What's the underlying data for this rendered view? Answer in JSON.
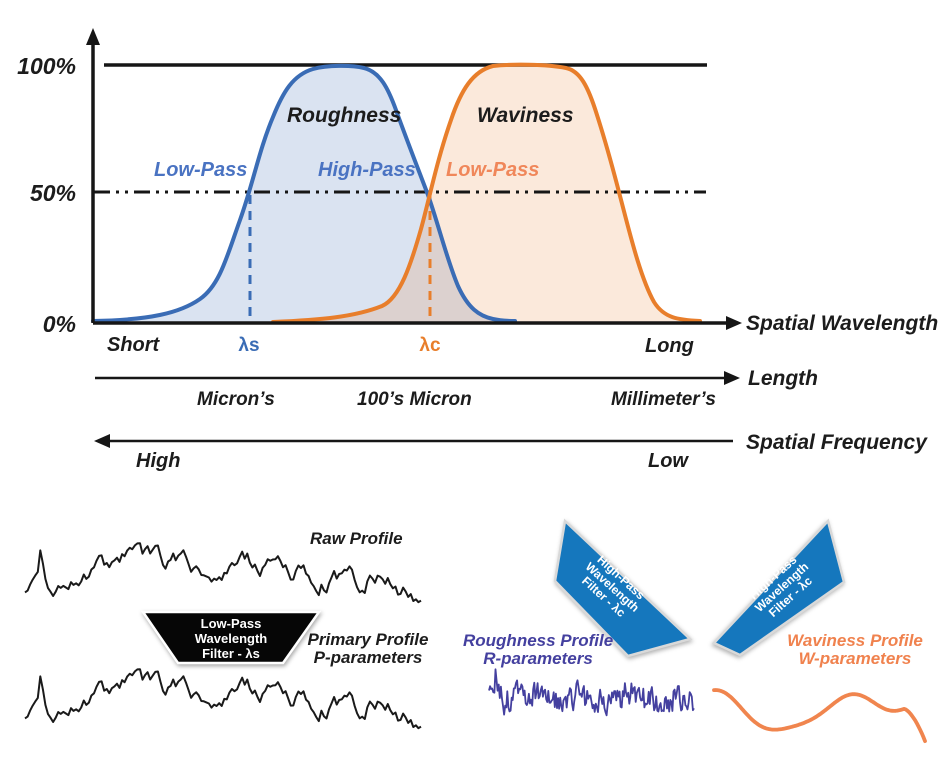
{
  "colors": {
    "roughness_curve": "#3a6cb5",
    "waviness_curve": "#e87e2b",
    "axis_black": "#161616",
    "filter_shape_blue": "#1577bd",
    "filter_shape_black": "#060606",
    "filter_shape_edge": "#d9d9d9",
    "filter_shape_edge_white": "#ffffff",
    "roughness_profile": "#44409f",
    "waviness_profile": "#f0854e",
    "profile_black": "#1a1a1a",
    "label_blue": "#4a73c2",
    "label_orange": "#f0875a"
  },
  "chart": {
    "y_ticks": {
      "p100": "100%",
      "p50": "50%",
      "p0": "0%"
    },
    "curve_labels": {
      "roughness": "Roughness",
      "waviness": "Waviness"
    },
    "filter_labels": {
      "low_pass_blue": "Low-Pass",
      "high_pass_blue": "High-Pass",
      "low_pass_orange": "Low-Pass"
    },
    "wavelength_axis": {
      "title": "Spatial Wavelength",
      "short": "Short",
      "lambda_s": "λs",
      "lambda_c": "λc",
      "long": "Long"
    },
    "length_axis": {
      "title": "Length",
      "microns": "Micron’s",
      "hundreds_micron": "100’s Micron",
      "millimeters": "Millimeter’s"
    },
    "frequency_axis": {
      "title": "Spatial Frequency",
      "high": "High",
      "low": "Low"
    }
  },
  "bottom": {
    "raw_profile_label": "Raw Profile",
    "primary_profile_line1": "Primary Profile",
    "primary_profile_line2": "P-parameters",
    "low_pass_filter": {
      "line1": "Low-Pass",
      "line2": "Wavelength",
      "line3": "Filter - λs"
    },
    "high_pass_filter_left": {
      "line1": "High-Pass",
      "line2": "Wavelength",
      "line3": "Filter - λc"
    },
    "high_pass_filter_right": {
      "line1": "High-Pass",
      "line2": "Wavelength",
      "line3": "Filter - λc"
    },
    "roughness_profile_line1": "Roughness Profile",
    "roughness_profile_line2": "R-parameters",
    "waviness_profile_line1": "Waviness Profile",
    "waviness_profile_line2": "W-parameters"
  },
  "traces": {
    "raw": {
      "seed": 13,
      "x0": 25,
      "x1": 421,
      "n": 155,
      "base": 574
    },
    "primary": {
      "seed": 13,
      "x0": 25,
      "x1": 421,
      "n": 155,
      "base": 700
    },
    "roughness": {
      "seed": 29,
      "x0": 489,
      "x1": 694,
      "n": 190,
      "base": 698
    },
    "waviness": {
      "x0": 714,
      "x1": 925,
      "n": 130,
      "base": 706
    }
  }
}
